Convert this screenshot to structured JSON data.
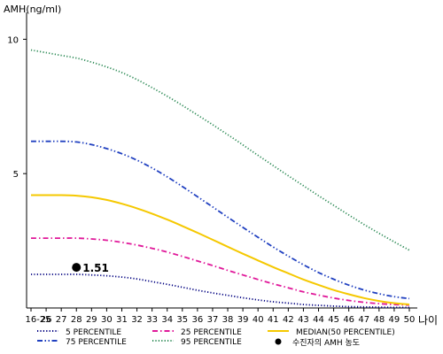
{
  "chart_data": {
    "type": "line",
    "ylabel": "AMH(ng/ml)",
    "xlabel": "나이",
    "ylim": [
      0,
      11
    ],
    "y_ticks": [
      5,
      10
    ],
    "x": [
      "16-25",
      "26",
      "27",
      "28",
      "29",
      "30",
      "31",
      "32",
      "33",
      "34",
      "35",
      "36",
      "37",
      "38",
      "39",
      "40",
      "41",
      "42",
      "43",
      "44",
      "45",
      "46",
      "47",
      "48",
      "49",
      "50"
    ],
    "series": [
      {
        "name": "5 PERCENTILE",
        "color": "#000080",
        "dash": "dotted",
        "values": [
          1.25,
          1.25,
          1.25,
          1.25,
          1.23,
          1.2,
          1.15,
          1.08,
          0.98,
          0.88,
          0.77,
          0.66,
          0.56,
          0.47,
          0.38,
          0.3,
          0.23,
          0.18,
          0.13,
          0.1,
          0.07,
          0.05,
          0.04,
          0.03,
          0.02,
          0.02
        ]
      },
      {
        "name": "25 PERCENTILE",
        "color": "#e0199a",
        "dash": "dashdot",
        "values": [
          2.6,
          2.6,
          2.6,
          2.6,
          2.57,
          2.52,
          2.44,
          2.34,
          2.22,
          2.08,
          1.92,
          1.75,
          1.58,
          1.4,
          1.23,
          1.06,
          0.9,
          0.75,
          0.6,
          0.48,
          0.37,
          0.28,
          0.21,
          0.16,
          0.13,
          0.11
        ]
      },
      {
        "name": "MEDIAN(50 PERCENTILE)",
        "color": "#f5c800",
        "dash": "solid",
        "values": [
          4.2,
          4.2,
          4.2,
          4.18,
          4.12,
          4.02,
          3.88,
          3.71,
          3.51,
          3.29,
          3.05,
          2.8,
          2.54,
          2.28,
          2.02,
          1.77,
          1.52,
          1.29,
          1.06,
          0.86,
          0.67,
          0.51,
          0.37,
          0.26,
          0.18,
          0.13
        ]
      },
      {
        "name": "75 PERCENTILE",
        "color": "#2040c0",
        "dash": "dashdotdot",
        "values": [
          6.2,
          6.2,
          6.2,
          6.18,
          6.08,
          5.93,
          5.74,
          5.5,
          5.21,
          4.88,
          4.52,
          4.14,
          3.76,
          3.38,
          3.0,
          2.63,
          2.27,
          1.93,
          1.61,
          1.32,
          1.07,
          0.85,
          0.67,
          0.53,
          0.42,
          0.35
        ]
      },
      {
        "name": "95 PERCENTILE",
        "color": "#2e8b57",
        "dash": "dotted",
        "values": [
          9.6,
          9.5,
          9.4,
          9.3,
          9.15,
          8.97,
          8.76,
          8.5,
          8.2,
          7.88,
          7.54,
          7.18,
          6.82,
          6.45,
          6.07,
          5.68,
          5.3,
          4.92,
          4.55,
          4.18,
          3.82,
          3.46,
          3.11,
          2.78,
          2.46,
          2.15
        ]
      }
    ],
    "marker": {
      "name": "수진자의 AMH 농도",
      "x": "28",
      "y": 1.51,
      "label": "1.51",
      "color": "#000000"
    },
    "legend_position": "bottom",
    "grid": false
  }
}
